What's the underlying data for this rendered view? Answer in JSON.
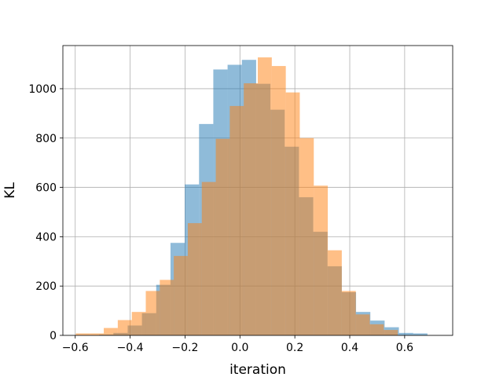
{
  "chart_data": {
    "type": "bar",
    "subtype": "overlapping-histogram",
    "xlabel": "iteration",
    "ylabel": "KL",
    "xlim": [
      -0.645,
      0.775
    ],
    "ylim": [
      0,
      1175
    ],
    "xticks": [
      -0.6,
      -0.4,
      -0.2,
      0.0,
      0.2,
      0.4,
      0.6
    ],
    "xtick_labels": [
      "−0.6",
      "−0.4",
      "−0.2",
      "0.0",
      "0.2",
      "0.4",
      "0.6"
    ],
    "yticks": [
      0,
      200,
      400,
      600,
      800,
      1000
    ],
    "ytick_labels": [
      "0",
      "200",
      "400",
      "600",
      "800",
      "1000"
    ],
    "grid": true,
    "series": [
      {
        "color": "#1f77b4",
        "opacity": 0.5,
        "bins": [
          [
            -0.513,
            -0.461,
            3
          ],
          [
            -0.461,
            -0.409,
            10
          ],
          [
            -0.409,
            -0.357,
            40
          ],
          [
            -0.357,
            -0.305,
            90
          ],
          [
            -0.305,
            -0.253,
            205
          ],
          [
            -0.253,
            -0.201,
            375
          ],
          [
            -0.201,
            -0.149,
            612
          ],
          [
            -0.149,
            -0.097,
            857
          ],
          [
            -0.097,
            -0.045,
            1078
          ],
          [
            -0.045,
            0.007,
            1097
          ],
          [
            0.007,
            0.059,
            1117
          ],
          [
            0.059,
            0.111,
            1020
          ],
          [
            0.111,
            0.163,
            915
          ],
          [
            0.163,
            0.215,
            765
          ],
          [
            0.215,
            0.267,
            560
          ],
          [
            0.267,
            0.319,
            420
          ],
          [
            0.319,
            0.371,
            280
          ],
          [
            0.371,
            0.423,
            175
          ],
          [
            0.423,
            0.475,
            95
          ],
          [
            0.475,
            0.527,
            60
          ],
          [
            0.527,
            0.579,
            33
          ],
          [
            0.579,
            0.631,
            10
          ],
          [
            0.631,
            0.683,
            8
          ]
        ]
      },
      {
        "color": "#ff7f0e",
        "opacity": 0.5,
        "bins": [
          [
            -0.598,
            -0.547,
            8
          ],
          [
            -0.547,
            -0.496,
            8
          ],
          [
            -0.496,
            -0.445,
            30
          ],
          [
            -0.445,
            -0.394,
            62
          ],
          [
            -0.394,
            -0.343,
            95
          ],
          [
            -0.343,
            -0.292,
            180
          ],
          [
            -0.292,
            -0.241,
            225
          ],
          [
            -0.241,
            -0.19,
            322
          ],
          [
            -0.19,
            -0.139,
            455
          ],
          [
            -0.139,
            -0.088,
            622
          ],
          [
            -0.088,
            -0.037,
            797
          ],
          [
            -0.037,
            0.014,
            930
          ],
          [
            0.014,
            0.065,
            1022
          ],
          [
            0.065,
            0.116,
            1127
          ],
          [
            0.116,
            0.167,
            1092
          ],
          [
            0.167,
            0.218,
            985
          ],
          [
            0.218,
            0.269,
            800
          ],
          [
            0.269,
            0.32,
            607
          ],
          [
            0.32,
            0.371,
            345
          ],
          [
            0.371,
            0.422,
            180
          ],
          [
            0.422,
            0.473,
            85
          ],
          [
            0.473,
            0.524,
            45
          ],
          [
            0.524,
            0.575,
            22
          ]
        ]
      }
    ]
  }
}
